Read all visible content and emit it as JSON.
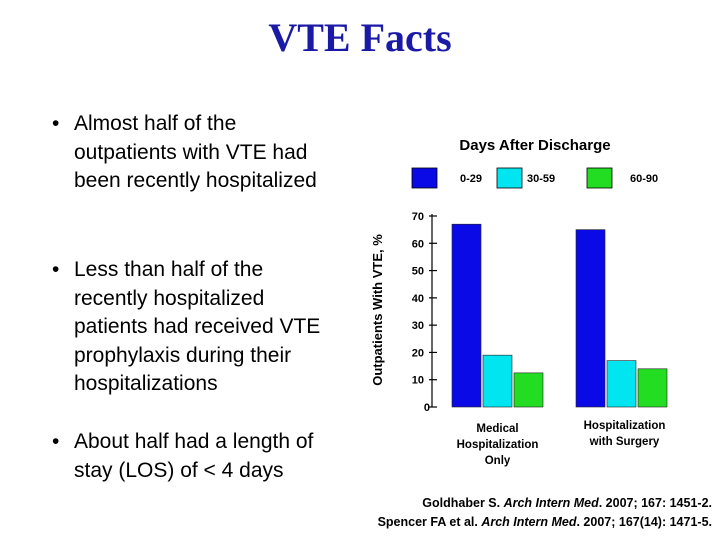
{
  "slide": {
    "title": "VTE Facts",
    "bullets": [
      "Almost half of the outpatients with VTE had been recently hospitalized",
      "Less than half of the recently hospitalized patients had received VTE prophylaxis during their hospitalizations",
      "About half had a length of stay (LOS) of < 4 days"
    ],
    "references": [
      {
        "before": "Goldhaber S. ",
        "journal": "Arch Intern Med",
        "after": ". 2007; 167: 1451-2."
      },
      {
        "before": "Spencer FA et al. ",
        "journal": "Arch Intern Med",
        "after": ". 2007; 167(14): 1471-5."
      }
    ]
  },
  "chart_data": {
    "type": "bar",
    "title": "Days After Discharge",
    "ylabel": "Outpatients With VTE, %",
    "xlabel": "",
    "categories": [
      "Medical Hospitalization Only",
      "Hospitalization with Surgery"
    ],
    "category_label_lines": [
      [
        "Medical",
        "Hospitalization",
        "Only"
      ],
      [
        "Hospitalization",
        "with Surgery"
      ]
    ],
    "series": [
      {
        "name": "0-29",
        "values": [
          67,
          65
        ],
        "color": "#0a0ae6"
      },
      {
        "name": "30-59",
        "values": [
          19,
          17
        ],
        "color": "#00e5f0"
      },
      {
        "name": "60-90",
        "values": [
          12.5,
          14
        ],
        "color": "#22dd22"
      }
    ],
    "ylim": [
      0,
      70
    ],
    "yticks": [
      0,
      10,
      20,
      30,
      40,
      50,
      60,
      70
    ],
    "grid": false,
    "legend_position": "top"
  }
}
